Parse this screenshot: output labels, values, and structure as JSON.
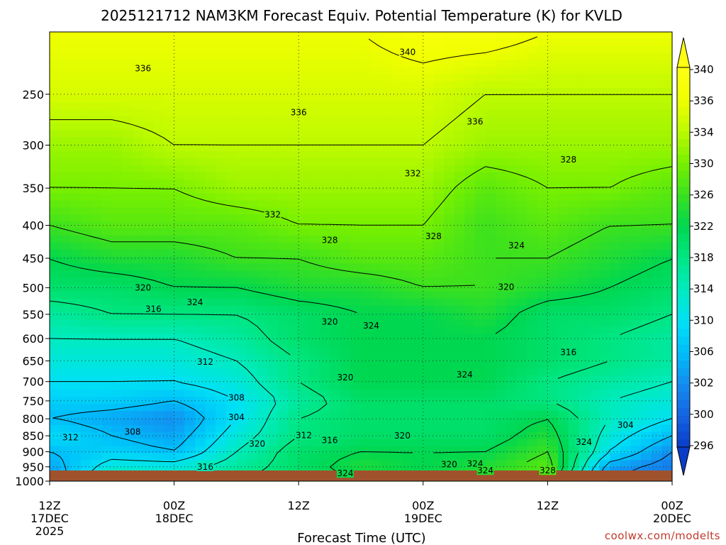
{
  "title": "2025121712 NAM3KM Forecast Equiv. Potential Temperature (K) for KVLD",
  "xlabel": "Forecast Time (UTC)",
  "credit": "coolwx.com/modelts",
  "colors": {
    "ground": "#a0522d",
    "low": "#1e64d8",
    "mid": "#00e6c8",
    "high": "#ffff00"
  },
  "chart_data": {
    "type": "heatmap",
    "title": "2025121712 NAM3KM Forecast Equiv. Potential Temperature (K) for KVLD",
    "xlabel": "Forecast Time (UTC)",
    "ylabel": "",
    "x_ticks": [
      {
        "hour": 0,
        "lines": [
          "12Z",
          "17DEC",
          "2025"
        ]
      },
      {
        "hour": 12,
        "lines": [
          "00Z",
          "18DEC"
        ]
      },
      {
        "hour": 24,
        "lines": [
          "12Z"
        ]
      },
      {
        "hour": 36,
        "lines": [
          "00Z",
          "19DEC"
        ]
      },
      {
        "hour": 48,
        "lines": [
          "12Z"
        ]
      },
      {
        "hour": 60,
        "lines": [
          "00Z",
          "20DEC"
        ]
      }
    ],
    "xlim": [
      0,
      60
    ],
    "y_ticks": [
      250,
      300,
      350,
      400,
      450,
      500,
      550,
      600,
      650,
      700,
      750,
      800,
      850,
      900,
      950,
      1000
    ],
    "ylim": [
      1000,
      200
    ],
    "ylog": true,
    "grid": true,
    "colorbar": [
      340,
      336,
      334,
      330,
      326,
      322,
      318,
      314,
      310,
      306,
      302,
      300,
      296
    ],
    "colorbar_range": [
      294,
      342
    ],
    "profile_p": [
      1000,
      950,
      900,
      850,
      800,
      750,
      700,
      650,
      600,
      550,
      500,
      450,
      400,
      350,
      300,
      250,
      200
    ],
    "profile_hours": [
      0,
      6,
      12,
      18,
      24,
      30,
      36,
      42,
      48,
      54,
      60
    ],
    "theta_e": [
      [
        302,
        316,
        312,
        318,
        320,
        322,
        322,
        326,
        326,
        300,
        302
      ],
      [
        304,
        312,
        312,
        316,
        320,
        324,
        322,
        324,
        328,
        304,
        300
      ],
      [
        306,
        308,
        306,
        314,
        320,
        322,
        322,
        322,
        326,
        310,
        302
      ],
      [
        310,
        306,
        304,
        312,
        318,
        320,
        320,
        320,
        324,
        312,
        306
      ],
      [
        306,
        304,
        302,
        310,
        318,
        320,
        320,
        320,
        322,
        314,
        310
      ],
      [
        308,
        308,
        306,
        310,
        316,
        320,
        320,
        320,
        318,
        314,
        312
      ],
      [
        310,
        310,
        310,
        312,
        318,
        322,
        322,
        322,
        318,
        316,
        314
      ],
      [
        312,
        312,
        312,
        314,
        318,
        322,
        322,
        322,
        320,
        318,
        316
      ],
      [
        314,
        314,
        314,
        316,
        320,
        322,
        322,
        322,
        320,
        318,
        316
      ],
      [
        316,
        318,
        318,
        318,
        320,
        322,
        322,
        324,
        320,
        320,
        318
      ],
      [
        320,
        320,
        322,
        322,
        324,
        324,
        326,
        326,
        324,
        322,
        320
      ],
      [
        322,
        324,
        324,
        326,
        326,
        328,
        328,
        326,
        326,
        324,
        322
      ],
      [
        326,
        328,
        328,
        328,
        330,
        330,
        330,
        326,
        328,
        326,
        326
      ],
      [
        330,
        330,
        330,
        332,
        332,
        332,
        332,
        328,
        330,
        330,
        328
      ],
      [
        332,
        332,
        334,
        334,
        334,
        334,
        334,
        332,
        332,
        332,
        332
      ],
      [
        336,
        336,
        336,
        336,
        336,
        336,
        336,
        334,
        334,
        334,
        334
      ],
      [
        338,
        338,
        338,
        338,
        338,
        338,
        340,
        340,
        338,
        338,
        338
      ]
    ],
    "contour_labels": [
      {
        "text": "340",
        "hour": 34.5,
        "p": 215
      },
      {
        "text": "336",
        "hour": 9.0,
        "p": 228
      },
      {
        "text": "336",
        "hour": 24.0,
        "p": 267
      },
      {
        "text": "336",
        "hour": 41.0,
        "p": 276
      },
      {
        "text": "332",
        "hour": 35.0,
        "p": 332
      },
      {
        "text": "332",
        "hour": 21.5,
        "p": 385
      },
      {
        "text": "328",
        "hour": 50.0,
        "p": 316
      },
      {
        "text": "328",
        "hour": 27.0,
        "p": 422
      },
      {
        "text": "328",
        "hour": 37.0,
        "p": 416
      },
      {
        "text": "324",
        "hour": 45.0,
        "p": 430
      },
      {
        "text": "320",
        "hour": 9.0,
        "p": 500
      },
      {
        "text": "324",
        "hour": 14.0,
        "p": 527
      },
      {
        "text": "316",
        "hour": 10.0,
        "p": 540
      },
      {
        "text": "320",
        "hour": 27.0,
        "p": 565
      },
      {
        "text": "324",
        "hour": 31.0,
        "p": 573
      },
      {
        "text": "320",
        "hour": 44.0,
        "p": 499
      },
      {
        "text": "316",
        "hour": 50.0,
        "p": 630
      },
      {
        "text": "312",
        "hour": 15.0,
        "p": 652
      },
      {
        "text": "324",
        "hour": 40.0,
        "p": 683
      },
      {
        "text": "320",
        "hour": 28.5,
        "p": 690
      },
      {
        "text": "308",
        "hour": 18.0,
        "p": 742
      },
      {
        "text": "304",
        "hour": 18.0,
        "p": 795
      },
      {
        "text": "308",
        "hour": 8.0,
        "p": 838
      },
      {
        "text": "312",
        "hour": 2.0,
        "p": 855
      },
      {
        "text": "312",
        "hour": 24.5,
        "p": 849
      },
      {
        "text": "316",
        "hour": 27.0,
        "p": 864
      },
      {
        "text": "320",
        "hour": 20.0,
        "p": 875
      },
      {
        "text": "320",
        "hour": 34.0,
        "p": 850
      },
      {
        "text": "304",
        "hour": 55.5,
        "p": 818
      },
      {
        "text": "324",
        "hour": 51.5,
        "p": 870
      },
      {
        "text": "316",
        "hour": 15.0,
        "p": 950
      },
      {
        "text": "324",
        "hour": 41.0,
        "p": 940
      },
      {
        "text": "320",
        "hour": 38.5,
        "p": 942
      },
      {
        "text": "324",
        "hour": 28.5,
        "p": 973
      },
      {
        "text": "324",
        "hour": 42.0,
        "p": 963
      },
      {
        "text": "328",
        "hour": 48.0,
        "p": 963
      }
    ]
  }
}
